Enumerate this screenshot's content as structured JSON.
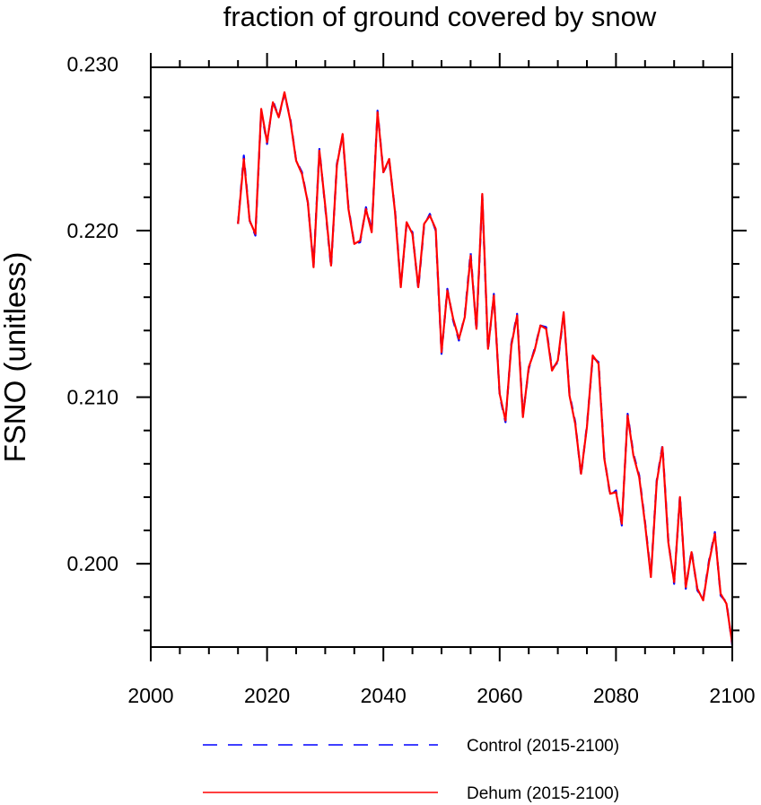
{
  "chart_data": {
    "type": "line",
    "title": "fraction of ground covered by snow",
    "xlabel": "",
    "ylabel": "FSNO  (unitless)",
    "xlim": [
      2000,
      2100
    ],
    "ylim": [
      0.195,
      0.2298
    ],
    "xticks": [
      2000,
      2020,
      2040,
      2060,
      2080,
      2100
    ],
    "xtick_labels": [
      "2000",
      "2020",
      "2040",
      "2060",
      "2080",
      "2100"
    ],
    "yticks": [
      0.2,
      0.21,
      0.22,
      0.23
    ],
    "ytick_labels": [
      "0.200",
      "0.210",
      "0.220",
      "0.230"
    ],
    "grid": false,
    "legend": "bottom",
    "x": [
      2015,
      2016,
      2017,
      2018,
      2019,
      2020,
      2021,
      2022,
      2023,
      2024,
      2025,
      2026,
      2027,
      2028,
      2029,
      2030,
      2031,
      2032,
      2033,
      2034,
      2035,
      2036,
      2037,
      2038,
      2039,
      2040,
      2041,
      2042,
      2043,
      2044,
      2045,
      2046,
      2047,
      2048,
      2049,
      2050,
      2051,
      2052,
      2053,
      2054,
      2055,
      2056,
      2057,
      2058,
      2059,
      2060,
      2061,
      2062,
      2063,
      2064,
      2065,
      2066,
      2067,
      2068,
      2069,
      2070,
      2071,
      2072,
      2073,
      2074,
      2075,
      2076,
      2077,
      2078,
      2079,
      2080,
      2081,
      2082,
      2083,
      2084,
      2085,
      2086,
      2087,
      2088,
      2089,
      2090,
      2091,
      2092,
      2093,
      2094,
      2095,
      2096,
      2097,
      2098,
      2099,
      2100
    ],
    "series": [
      {
        "name": "Control (2015-2100)",
        "color": "#0000ff",
        "style": "dashed",
        "values": [
          0.2204,
          0.2245,
          0.2206,
          0.2197,
          0.2272,
          0.2252,
          0.2278,
          0.2268,
          0.2282,
          0.2267,
          0.2242,
          0.2235,
          0.2217,
          0.2179,
          0.2249,
          0.2214,
          0.2178,
          0.224,
          0.2257,
          0.2214,
          0.2192,
          0.2193,
          0.2214,
          0.22,
          0.2272,
          0.2235,
          0.2242,
          0.2212,
          0.2167,
          0.2204,
          0.2199,
          0.2165,
          0.2203,
          0.221,
          0.22,
          0.2126,
          0.2165,
          0.2146,
          0.2134,
          0.2149,
          0.2187,
          0.214,
          0.2221,
          0.2128,
          0.2162,
          0.2101,
          0.2085,
          0.2132,
          0.215,
          0.2089,
          0.2117,
          0.2129,
          0.2143,
          0.2142,
          0.2117,
          0.2121,
          0.215,
          0.2102,
          0.2085,
          0.2053,
          0.2083,
          0.2124,
          0.2121,
          0.2064,
          0.2041,
          0.2044,
          0.2023,
          0.209,
          0.2066,
          0.2053,
          0.2025,
          0.1993,
          0.205,
          0.2071,
          0.2014,
          0.1988,
          0.2041,
          0.1985,
          0.2008,
          0.1984,
          0.1979,
          0.2002,
          0.2019,
          0.1981,
          0.1977,
          0.1951
        ]
      },
      {
        "name": "Dehum (2015-2100)",
        "color": "#ff0000",
        "style": "solid",
        "values": [
          0.2204,
          0.2243,
          0.2206,
          0.2198,
          0.2273,
          0.2253,
          0.2277,
          0.2268,
          0.2283,
          0.2266,
          0.2242,
          0.2234,
          0.2217,
          0.2178,
          0.2248,
          0.2215,
          0.2179,
          0.2239,
          0.2258,
          0.2213,
          0.2192,
          0.2194,
          0.2213,
          0.2199,
          0.2271,
          0.2235,
          0.2243,
          0.2211,
          0.2166,
          0.2205,
          0.2198,
          0.2166,
          0.2204,
          0.2209,
          0.2201,
          0.2127,
          0.2164,
          0.2147,
          0.2135,
          0.2148,
          0.2185,
          0.2141,
          0.2222,
          0.2129,
          0.2161,
          0.2102,
          0.2086,
          0.2131,
          0.2149,
          0.2088,
          0.2118,
          0.2128,
          0.2143,
          0.2141,
          0.2116,
          0.2122,
          0.2151,
          0.2101,
          0.2084,
          0.2054,
          0.2082,
          0.2125,
          0.212,
          0.2063,
          0.2042,
          0.2043,
          0.2024,
          0.2089,
          0.2065,
          0.2052,
          0.2024,
          0.1992,
          0.2049,
          0.207,
          0.2013,
          0.1989,
          0.204,
          0.1986,
          0.2007,
          0.1985,
          0.1978,
          0.2001,
          0.2018,
          0.1982,
          0.1976,
          0.1952
        ]
      }
    ]
  }
}
